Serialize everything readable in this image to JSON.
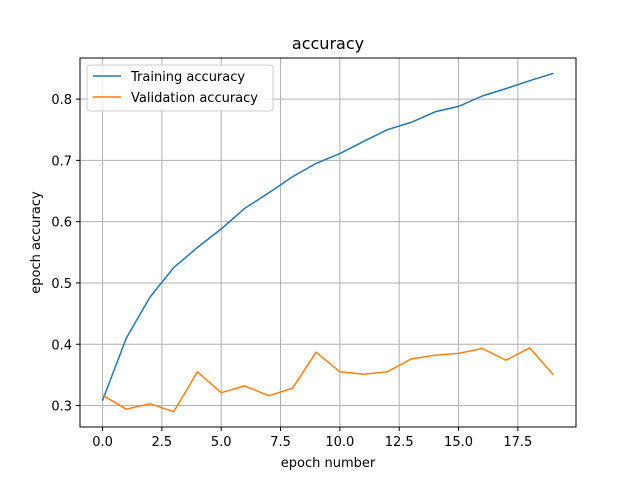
{
  "chart_data": {
    "type": "line",
    "title": "accuracy",
    "xlabel": "epoch number",
    "ylabel": "epoch accuracy",
    "xlim": [
      -0.95,
      19.95
    ],
    "ylim": [
      0.265,
      0.867
    ],
    "xticks": [
      0.0,
      2.5,
      5.0,
      7.5,
      10.0,
      12.5,
      15.0,
      17.5
    ],
    "xtick_labels": [
      "0.0",
      "2.5",
      "5.0",
      "7.5",
      "10.0",
      "12.5",
      "15.0",
      "17.5"
    ],
    "yticks": [
      0.3,
      0.4,
      0.5,
      0.6,
      0.7,
      0.8
    ],
    "ytick_labels": [
      "0.3",
      "0.4",
      "0.5",
      "0.6",
      "0.7",
      "0.8"
    ],
    "grid": true,
    "legend_position": "top-left",
    "x": [
      0,
      1,
      2,
      3,
      4,
      5,
      6,
      7,
      8,
      9,
      10,
      11,
      12,
      13,
      14,
      15,
      16,
      17,
      18,
      19
    ],
    "series": [
      {
        "name": "Training accuracy",
        "color": "#1f77b4",
        "values": [
          0.308,
          0.41,
          0.477,
          0.525,
          0.558,
          0.588,
          0.622,
          0.647,
          0.673,
          0.695,
          0.711,
          0.731,
          0.75,
          0.762,
          0.779,
          0.788,
          0.805,
          0.817,
          0.83,
          0.842
        ]
      },
      {
        "name": "Validation accuracy",
        "color": "#ff7f0e",
        "values": [
          0.317,
          0.294,
          0.303,
          0.29,
          0.355,
          0.321,
          0.332,
          0.316,
          0.328,
          0.387,
          0.355,
          0.351,
          0.355,
          0.376,
          0.382,
          0.385,
          0.393,
          0.374,
          0.394,
          0.35
        ]
      }
    ]
  }
}
